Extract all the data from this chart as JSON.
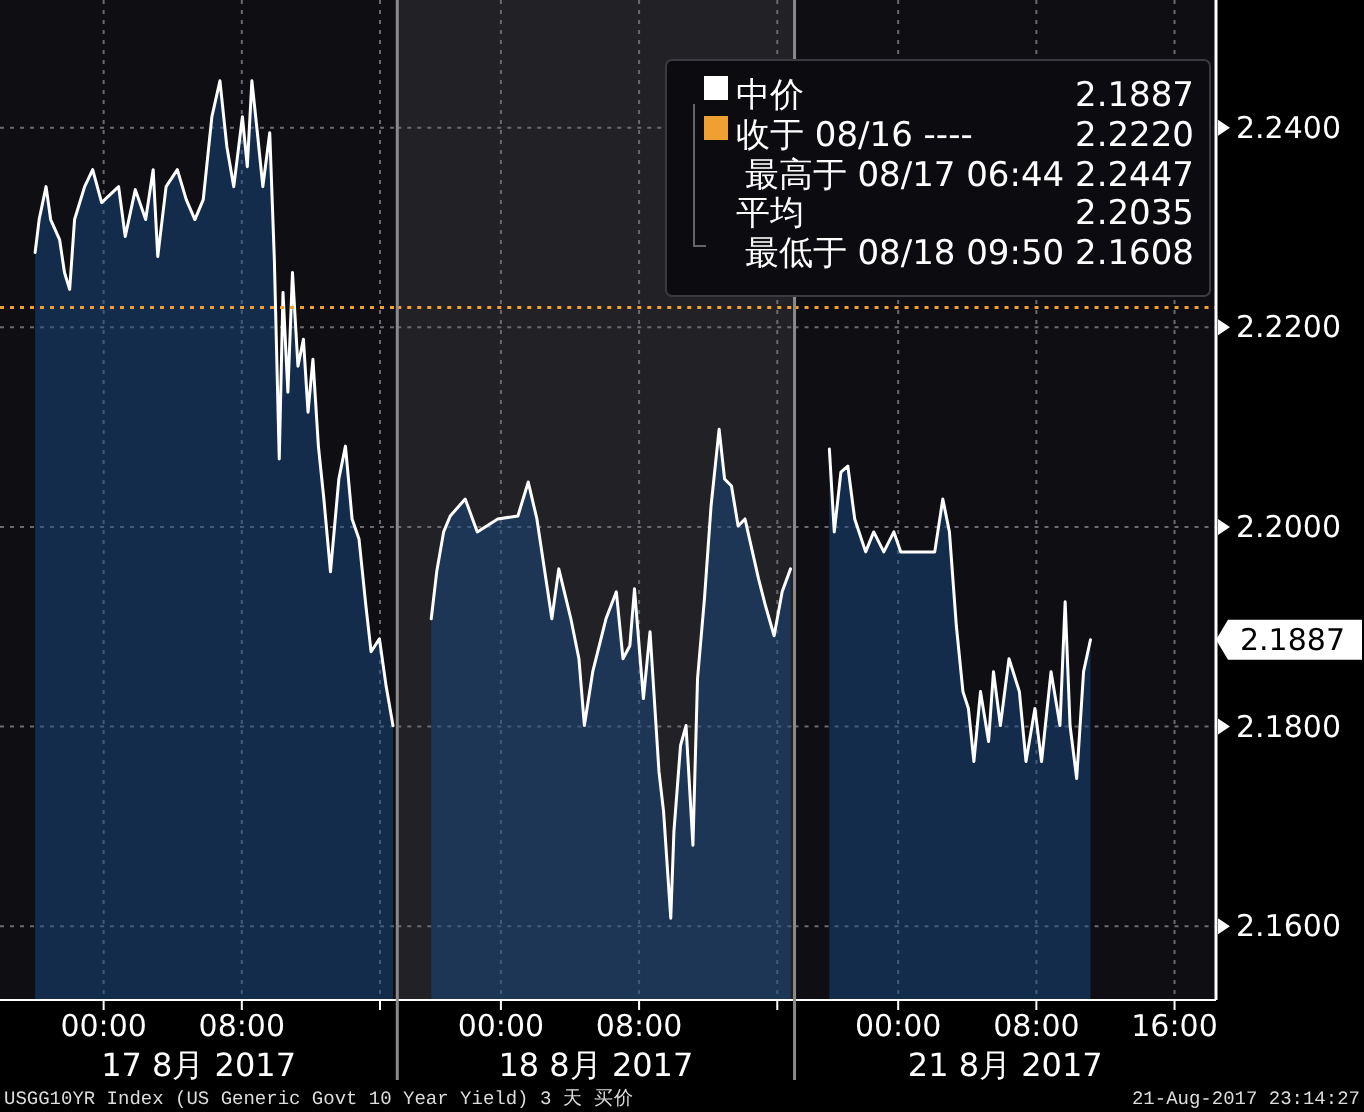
{
  "chart_data": [
    {
      "type": "area",
      "x": [
        "2017-08-16T20:02",
        "2017-08-16T20:16",
        "2017-08-16T20:40",
        "2017-08-16T20:56",
        "2017-08-16T21:27",
        "2017-08-16T21:44",
        "2017-08-16T22:02",
        "2017-08-16T22:19",
        "2017-08-16T22:54",
        "2017-08-16T23:22",
        "2017-08-16T23:53",
        "2017-08-17T00:52",
        "2017-08-17T01:15",
        "2017-08-17T01:50",
        "2017-08-17T02:26",
        "2017-08-17T02:52",
        "2017-08-17T03:08",
        "2017-08-17T03:37",
        "2017-08-17T04:16",
        "2017-08-17T04:47",
        "2017-08-17T05:17",
        "2017-08-17T05:46",
        "2017-08-17T06:16",
        "2017-08-17T06:44",
        "2017-08-17T07:08",
        "2017-08-17T07:32",
        "2017-08-17T08:02",
        "2017-08-17T08:19",
        "2017-08-17T08:35",
        "2017-08-17T08:54",
        "2017-08-17T09:13",
        "2017-08-17T09:37",
        "2017-08-17T09:53",
        "2017-08-17T10:10",
        "2017-08-17T10:23",
        "2017-08-17T10:40",
        "2017-08-17T10:56",
        "2017-08-17T11:15",
        "2017-08-17T11:34",
        "2017-08-17T11:50",
        "2017-08-17T12:07",
        "2017-08-17T12:26",
        "2017-08-17T12:45",
        "2017-08-17T13:08",
        "2017-08-17T13:37",
        "2017-08-17T14:00",
        "2017-08-17T14:23",
        "2017-08-17T14:47",
        "2017-08-17T15:11",
        "2017-08-17T15:29",
        "2017-08-17T15:58",
        "2017-08-17T16:21",
        "2017-08-17T16:45"
      ],
      "series": [
        {
          "color": "#ffffff",
          "values": [
            2.2275,
            2.2308,
            2.2341,
            2.2308,
            2.2288,
            2.2255,
            2.2238,
            2.2308,
            2.2341,
            2.2358,
            2.2325,
            2.2341,
            2.2291,
            2.2338,
            2.2308,
            2.2358,
            2.2271,
            2.2341,
            2.2358,
            2.2328,
            2.2308,
            2.2328,
            2.2411,
            2.2447,
            2.2381,
            2.2341,
            2.2411,
            2.2361,
            2.2447,
            2.2395,
            2.2341,
            2.2395,
            2.2268,
            2.2068,
            2.2235,
            2.2135,
            2.2255,
            2.2161,
            2.2188,
            2.2115,
            2.2168,
            2.2081,
            2.2028,
            2.1955,
            2.2048,
            2.2081,
            2.2008,
            2.1988,
            2.1921,
            2.1875,
            2.1888,
            2.1841,
            2.1801
          ]
        }
      ],
      "xlim": [
        "2017-08-16T18:00",
        "2017-08-17T17:00"
      ],
      "xticks": [
        {
          "value": "2017-08-17T00:00",
          "label": "00:00"
        },
        {
          "value": "2017-08-17T08:00",
          "label": "08:00"
        },
        {
          "value": "2017-08-17T16:00",
          "label": null
        }
      ],
      "ylim": [
        2.1526,
        2.2528
      ],
      "yticks": [
        2.16,
        2.18,
        2.2,
        2.22,
        2.24
      ],
      "tick_labels": "x",
      "ref_lines": [
        {
          "axis": "y",
          "value": 2.222,
          "color": "#f0a030",
          "line_style": "dotted"
        }
      ],
      "annotations": [
        "17 8月 2017"
      ],
      "grid": true,
      "marker": "none"
    },
    {
      "type": "area",
      "x": [
        "2017-08-17T19:58",
        "2017-08-17T20:17",
        "2017-08-17T20:41",
        "2017-08-17T21:04",
        "2017-08-17T21:56",
        "2017-08-17T22:38",
        "2017-08-17T23:49",
        "2017-08-18T00:59",
        "2017-08-18T01:35",
        "2017-08-18T02:05",
        "2017-08-18T02:57",
        "2017-08-18T03:21",
        "2017-08-18T04:03",
        "2017-08-18T04:31",
        "2017-08-18T04:50",
        "2017-08-18T05:19",
        "2017-08-18T06:05",
        "2017-08-18T06:41",
        "2017-08-18T07:04",
        "2017-08-18T07:28",
        "2017-08-18T07:44",
        "2017-08-18T08:15",
        "2017-08-18T08:38",
        "2017-08-18T09:09",
        "2017-08-18T09:25",
        "2017-08-18T09:50",
        "2017-08-18T10:01",
        "2017-08-18T10:24",
        "2017-08-18T10:43",
        "2017-08-18T11:07",
        "2017-08-18T11:23",
        "2017-08-18T11:47",
        "2017-08-18T12:10",
        "2017-08-18T12:38",
        "2017-08-18T12:57",
        "2017-08-18T13:21",
        "2017-08-18T13:44",
        "2017-08-18T14:08",
        "2017-08-18T14:55",
        "2017-08-18T15:19",
        "2017-08-18T15:49",
        "2017-08-18T16:17",
        "2017-08-18T16:46"
      ],
      "series": [
        {
          "color": "#ffffff",
          "values": [
            2.1908,
            2.1955,
            2.1995,
            2.2011,
            2.2028,
            2.1995,
            2.2008,
            2.2011,
            2.2045,
            2.2008,
            2.1908,
            2.1958,
            2.1908,
            2.1868,
            2.1801,
            2.1855,
            2.1908,
            2.1935,
            2.1868,
            2.1881,
            2.1938,
            2.1828,
            2.1895,
            2.1755,
            2.1715,
            2.1608,
            2.1695,
            2.1781,
            2.1801,
            2.1681,
            2.1848,
            2.1928,
            2.2021,
            2.2098,
            2.2048,
            2.2041,
            2.2001,
            2.2008,
            2.1948,
            2.1921,
            2.1891,
            2.1935,
            2.1958
          ]
        }
      ],
      "xlim": [
        "2017-08-17T18:00",
        "2017-08-18T17:00"
      ],
      "xticks": [
        {
          "value": "2017-08-18T00:00",
          "label": "00:00"
        },
        {
          "value": "2017-08-18T08:00",
          "label": "08:00"
        },
        {
          "value": "2017-08-18T16:00",
          "label": null
        }
      ],
      "ylim": [
        2.1526,
        2.2528
      ],
      "yticks": [
        2.16,
        2.18,
        2.2,
        2.22,
        2.24
      ],
      "tick_labels": "x",
      "bands": [
        {
          "axis": "x",
          "from": "2017-08-17T18:00",
          "to": "2017-08-18T17:00",
          "color": "#222226"
        }
      ],
      "ref_lines": [
        {
          "axis": "y",
          "value": 2.222,
          "color": "#f0a030",
          "line_style": "dotted"
        }
      ],
      "annotations": [
        "18 8月 2017"
      ],
      "grid": true,
      "marker": "none"
    },
    {
      "type": "area",
      "x": [
        "2017-08-20T20:01",
        "2017-08-20T20:18",
        "2017-08-20T20:41",
        "2017-08-20T21:05",
        "2017-08-20T21:29",
        "2017-08-20T22:07",
        "2017-08-20T22:35",
        "2017-08-20T23:10",
        "2017-08-20T23:45",
        "2017-08-21T00:09",
        "2017-08-21T02:07",
        "2017-08-21T02:35",
        "2017-08-21T02:58",
        "2017-08-21T03:22",
        "2017-08-21T03:45",
        "2017-08-21T04:04",
        "2017-08-21T04:23",
        "2017-08-21T04:46",
        "2017-08-21T05:14",
        "2017-08-21T05:31",
        "2017-08-21T05:55",
        "2017-08-21T06:25",
        "2017-08-21T07:01",
        "2017-08-21T07:24",
        "2017-08-21T07:55",
        "2017-08-21T08:18",
        "2017-08-21T08:51",
        "2017-08-21T09:22",
        "2017-08-21T09:40",
        "2017-08-21T09:57",
        "2017-08-21T10:20",
        "2017-08-21T10:44",
        "2017-08-21T11:08"
      ],
      "series": [
        {
          "name": "中价",
          "color": "#ffffff",
          "values": [
            2.2078,
            2.1995,
            2.2055,
            2.2061,
            2.2008,
            2.1975,
            2.1995,
            2.1975,
            2.1995,
            2.1975,
            2.1975,
            2.2028,
            2.1995,
            2.1901,
            2.1835,
            2.1818,
            2.1765,
            2.1835,
            2.1785,
            2.1855,
            2.1801,
            2.1868,
            2.1835,
            2.1765,
            2.1818,
            2.1765,
            2.1855,
            2.1801,
            2.1925,
            2.1801,
            2.1748,
            2.1855,
            2.1887
          ]
        }
      ],
      "xlim": [
        "2017-08-20T18:00",
        "2017-08-21T18:24"
      ],
      "xticks": [
        {
          "value": "2017-08-21T00:00",
          "label": "00:00"
        },
        {
          "value": "2017-08-21T08:00",
          "label": "08:00"
        },
        {
          "value": "2017-08-21T16:00",
          "label": "16:00"
        }
      ],
      "ylim": [
        2.1526,
        2.2528
      ],
      "yticks": [
        {
          "value": 2.16,
          "label": "2.1600"
        },
        {
          "value": 2.18,
          "label": "2.1800"
        },
        {
          "value": 2.2,
          "label": "2.2000"
        },
        {
          "value": 2.22,
          "label": "2.2200"
        },
        {
          "value": 2.24,
          "label": "2.2400"
        }
      ],
      "ref_lines": [
        {
          "axis": "y",
          "value": 2.222,
          "label": "收于 08/16 ----",
          "color": "#f0a030",
          "line_style": "dotted"
        }
      ],
      "annotations": [
        "21 8月 2017",
        "2.1887",
        "2.2220",
        "最高于 08/17 06:44 2.2447",
        "平均",
        "2.2035",
        "最低于 08/18 09:50 2.1608",
        "2.1887",
        "USGG10YR Index (US Generic Govt 10 Year Yield) 3 天  买价",
        "21-Aug-2017 23:14:27"
      ],
      "grid": true,
      "legend": "top",
      "marker": "none"
    }
  ]
}
